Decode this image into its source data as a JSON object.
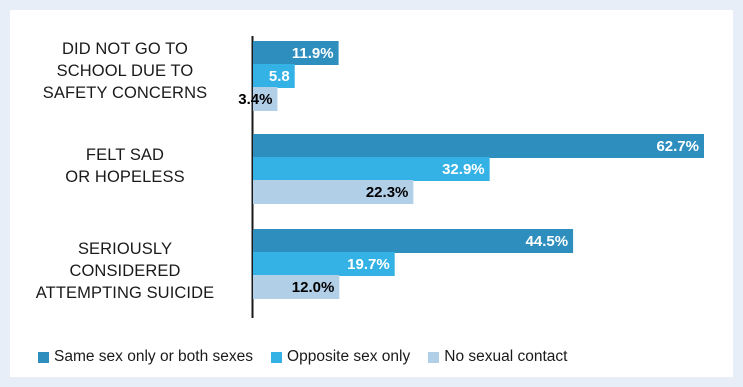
{
  "chart_data": {
    "type": "bar",
    "orientation": "horizontal",
    "categories": [
      [
        "DID NOT GO TO",
        "SCHOOL DUE TO",
        "SAFETY CONCERNS"
      ],
      [
        "FELT SAD",
        "OR HOPELESS"
      ],
      [
        "SERIOUSLY",
        "CONSIDERED",
        "ATTEMPTING SUICIDE"
      ]
    ],
    "series": [
      {
        "name": "Same sex only or both sexes",
        "color": "#2e8fbf",
        "values": [
          11.9,
          62.7,
          44.5
        ],
        "labels": [
          "11.9%",
          "62.7%",
          "44.5%"
        ],
        "label_color": "#ffffff"
      },
      {
        "name": "Opposite sex only",
        "color": "#35b2e5",
        "values": [
          5.8,
          32.9,
          19.7
        ],
        "labels": [
          "5.8",
          "32.9%",
          "19.7%"
        ],
        "label_color": "#ffffff"
      },
      {
        "name": "No sexual contact",
        "color": "#b2cfe8",
        "values": [
          3.4,
          22.3,
          12.0
        ],
        "labels": [
          "3.4%",
          "22.3%",
          "12.0%"
        ],
        "label_color": "#000000"
      }
    ],
    "xlim": [
      0,
      70
    ],
    "grid": false,
    "legend_position": "bottom"
  }
}
